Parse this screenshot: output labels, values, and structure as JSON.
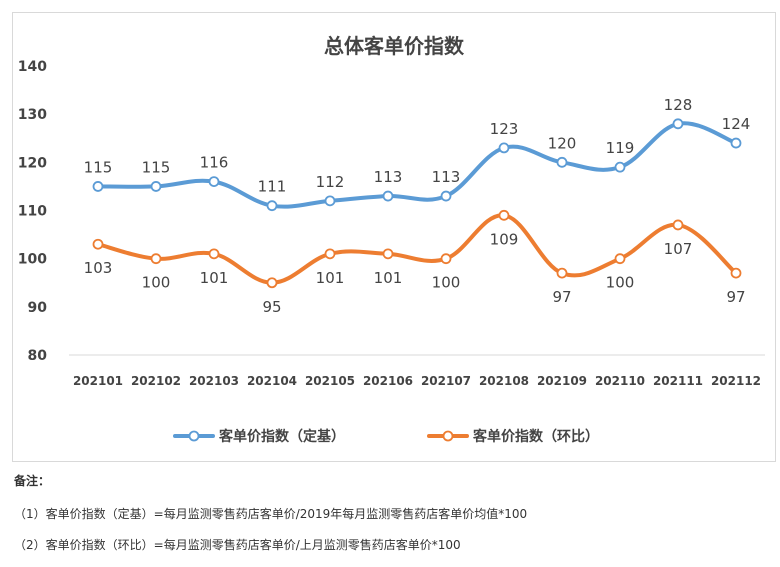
{
  "chart_data": {
    "type": "line",
    "title": "总体客单价指数",
    "categories": [
      "202101",
      "202102",
      "202103",
      "202104",
      "202105",
      "202106",
      "202107",
      "202108",
      "202109",
      "202110",
      "202111",
      "202112"
    ],
    "series": [
      {
        "name": "客单价指数（定基）",
        "color": "#5b9bd5",
        "values": [
          115,
          115,
          116,
          111,
          112,
          113,
          113,
          123,
          120,
          119,
          128,
          124
        ],
        "labels": [
          "115",
          "115",
          "116",
          "111",
          "112",
          "113",
          "113",
          "123",
          "120",
          "119",
          "128",
          "124"
        ],
        "label_position": "above"
      },
      {
        "name": "客单价指数（环比）",
        "color": "#ed7d31",
        "values": [
          103,
          100,
          101,
          95,
          101,
          101,
          100,
          109,
          97,
          100,
          107,
          97
        ],
        "labels": [
          "103",
          "100",
          "101",
          "95",
          "101",
          "101",
          "100",
          "109",
          "97",
          "100",
          "107",
          "97"
        ],
        "label_position": "below"
      }
    ],
    "yticks": [
      "80",
      "90",
      "100",
      "110",
      "120",
      "130",
      "140"
    ],
    "ylim": [
      80,
      140
    ],
    "grid": false,
    "legend_position": "bottom",
    "line_style": "smooth"
  },
  "notes": {
    "title": "备注：",
    "lines": [
      "（1）客单价指数（定基）=每月监测零售药店客单价/2019年每月监测零售药店客单价均值*100",
      "（2）客单价指数（环比）=每月监测零售药店客单价/上月监测零售药店客单价*100"
    ]
  }
}
